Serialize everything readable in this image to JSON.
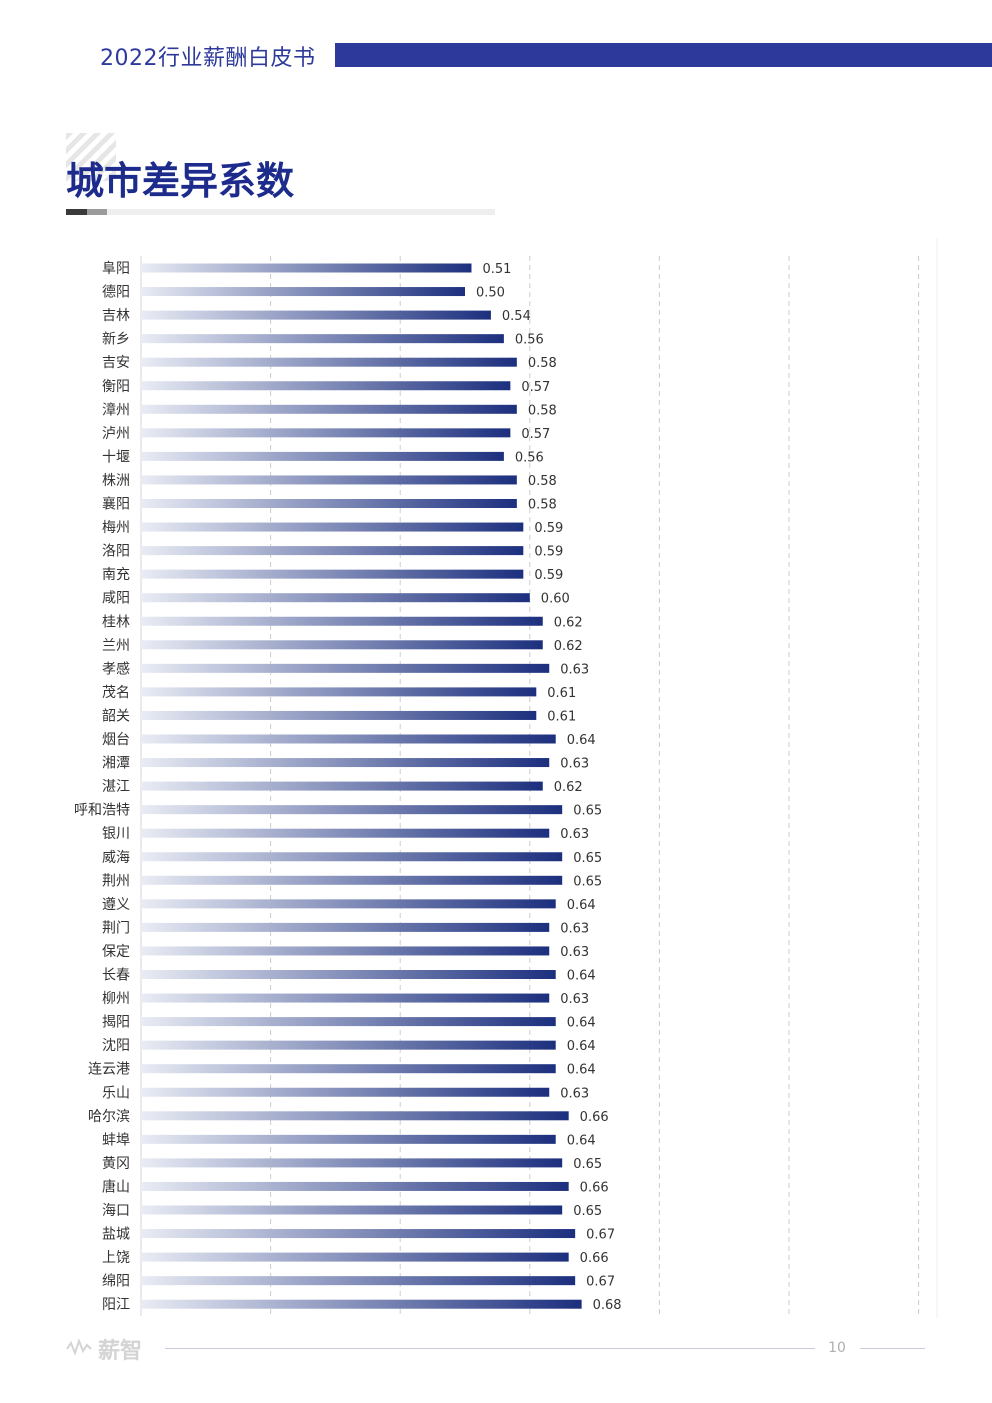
{
  "header": {
    "title": "2022行业薪酬白皮书"
  },
  "section": {
    "title": "城市差异系数"
  },
  "footer": {
    "logo_text": "薪智",
    "page_number": "10"
  },
  "colors": {
    "brand": "#2d3a9c",
    "bar_end": "#1c2f7e",
    "bar_start": "#e9ecf4"
  },
  "chart_data": {
    "type": "bar",
    "orientation": "horizontal",
    "title": "城市差异系数",
    "xlim": [
      0,
      1.2
    ],
    "grid": true,
    "categories": [
      "阜阳",
      "德阳",
      "吉林",
      "新乡",
      "吉安",
      "衡阳",
      "漳州",
      "泸州",
      "十堰",
      "株洲",
      "襄阳",
      "梅州",
      "洛阳",
      "南充",
      "咸阳",
      "桂林",
      "兰州",
      "孝感",
      "茂名",
      "韶关",
      "烟台",
      "湘潭",
      "湛江",
      "呼和浩特",
      "银川",
      "威海",
      "荆州",
      "遵义",
      "荆门",
      "保定",
      "长春",
      "柳州",
      "揭阳",
      "沈阳",
      "连云港",
      "乐山",
      "哈尔滨",
      "蚌埠",
      "黄冈",
      "唐山",
      "海口",
      "盐城",
      "上饶",
      "绵阳",
      "阳江"
    ],
    "values": [
      0.51,
      0.5,
      0.54,
      0.56,
      0.58,
      0.57,
      0.58,
      0.57,
      0.56,
      0.58,
      0.58,
      0.59,
      0.59,
      0.59,
      0.6,
      0.62,
      0.62,
      0.63,
      0.61,
      0.61,
      0.64,
      0.63,
      0.62,
      0.65,
      0.63,
      0.65,
      0.65,
      0.64,
      0.63,
      0.63,
      0.64,
      0.63,
      0.64,
      0.64,
      0.64,
      0.63,
      0.66,
      0.64,
      0.65,
      0.66,
      0.65,
      0.67,
      0.66,
      0.67,
      0.68
    ],
    "value_labels": [
      "0.51",
      "0.50",
      "0.54",
      "0.56",
      "0.58",
      "0.57",
      "0.58",
      "0.57",
      "0.56",
      "0.58",
      "0.58",
      "0.59",
      "0.59",
      "0.59",
      "0.60",
      "0.62",
      "0.62",
      "0.63",
      "0.61",
      "0.61",
      "0.64",
      "0.63",
      "0.62",
      "0.65",
      "0.63",
      "0.65",
      "0.65",
      "0.64",
      "0.63",
      "0.63",
      "0.64",
      "0.63",
      "0.64",
      "0.64",
      "0.64",
      "0.63",
      "0.66",
      "0.64",
      "0.65",
      "0.66",
      "0.65",
      "0.67",
      "0.66",
      "0.67",
      "0.68"
    ]
  }
}
